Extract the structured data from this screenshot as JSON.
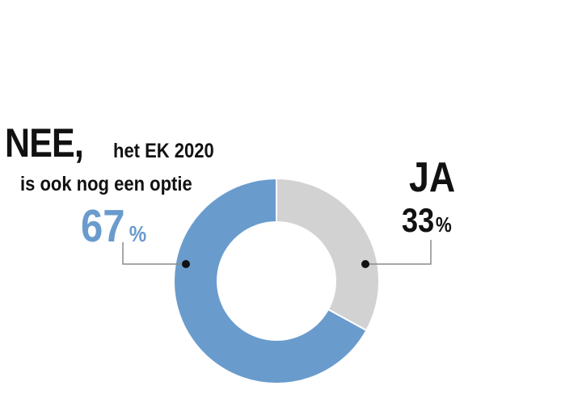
{
  "chart_data": {
    "type": "pie",
    "categories": [
      "NEE",
      "JA"
    ],
    "values": [
      67,
      33
    ],
    "colors": [
      "#6a9bcd",
      "#d2d2d3"
    ],
    "donut": true,
    "labels": {
      "nee": {
        "word": "NEE,",
        "line1": "het EK 2020",
        "line2": "is ook nog een optie",
        "value": "67",
        "unit": "%"
      },
      "ja": {
        "word": "JA",
        "value": "33",
        "unit": "%"
      }
    }
  }
}
